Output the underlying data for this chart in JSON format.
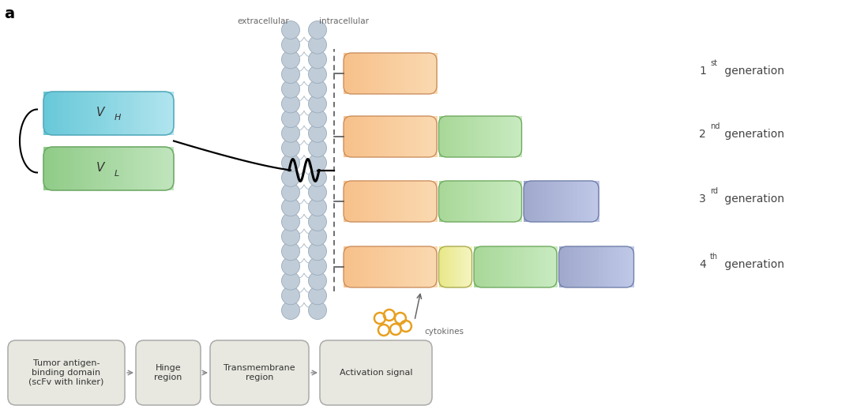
{
  "title_label": "a",
  "extracellular_label": "extracellular",
  "intracellular_label": "intracellular",
  "cytokines_label": "cytokines",
  "color_orange_l": "#F7C08A",
  "color_orange_r": "#FAD9B0",
  "color_green_l": "#A8D898",
  "color_green_r": "#C8EAC0",
  "color_blue_l": "#A0A8CC",
  "color_blue_r": "#C0C8E8",
  "color_yellow_l": "#E8E888",
  "color_yellow_r": "#F4F4C0",
  "color_vh_l": "#68C8D8",
  "color_vh_r": "#B0E4EE",
  "color_vl_l": "#90CC88",
  "color_vl_r": "#C0E4BC",
  "color_membrane": "#C0CDD8",
  "color_membrane_ec": "#9AAABB",
  "color_box_bg": "#E8E8E0",
  "color_cytokine": "#E8A020",
  "box_labels": [
    "Tumor antigen-\nbinding domain\n(scFv with linker)",
    "Hinge\nregion",
    "Transmembrane\nregion",
    "Activation signal"
  ],
  "gen_data": [
    {
      "num": "1",
      "sup": "st",
      "boxes": [
        "orange"
      ]
    },
    {
      "num": "2",
      "sup": "nd",
      "boxes": [
        "orange",
        "green"
      ]
    },
    {
      "num": "3",
      "sup": "rd",
      "boxes": [
        "orange",
        "green",
        "blue"
      ]
    },
    {
      "num": "4",
      "sup": "th",
      "boxes": [
        "orange",
        "yellow",
        "green",
        "blue"
      ]
    }
  ],
  "figsize": [
    10.8,
    5.23
  ],
  "dpi": 100
}
